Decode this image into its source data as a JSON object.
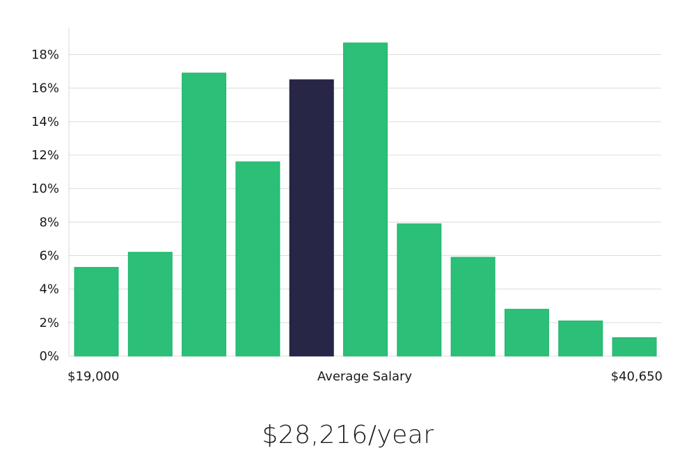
{
  "chart_data": {
    "type": "bar",
    "title": "",
    "xlabel": "Average Salary",
    "ylabel": "",
    "x_min_label": "$19,000",
    "x_max_label": "$40,650",
    "yticks": [
      "0%",
      "2%",
      "4%",
      "6%",
      "8%",
      "10%",
      "12%",
      "14%",
      "16%",
      "18%"
    ],
    "ylim": [
      0,
      19.6
    ],
    "values": [
      5.3,
      6.2,
      16.9,
      11.6,
      16.5,
      18.7,
      7.9,
      5.9,
      2.8,
      2.1,
      1.1
    ],
    "highlight_index": 4,
    "bar_color": "#2bbf77",
    "highlight_color": "#282646",
    "grid": true
  },
  "summary": {
    "salary": "$28,216/year"
  }
}
